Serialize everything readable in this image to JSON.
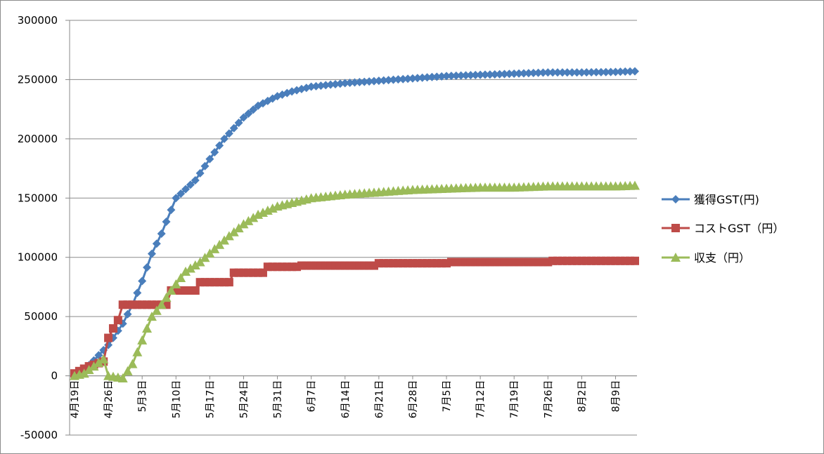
{
  "chart_data": {
    "type": "line",
    "title": "",
    "xlabel": "",
    "ylabel": "",
    "ylim": [
      -50000,
      300000
    ],
    "y_ticks": [
      "-50000",
      "0",
      "50000",
      "100000",
      "150000",
      "200000",
      "250000",
      "300000"
    ],
    "y_tick_values": [
      -50000,
      0,
      50000,
      100000,
      150000,
      200000,
      250000,
      300000
    ],
    "x_tick_labels": [
      "4月19日",
      "4月26日",
      "5月3日",
      "5月10日",
      "5月17日",
      "5月24日",
      "5月31日",
      "6月7日",
      "6月14日",
      "6月21日",
      "6月28日",
      "7月5日",
      "7月12日",
      "7月19日",
      "7月26日",
      "8月2日",
      "8月9日"
    ],
    "x_range": [
      "4月19日",
      "8月13日"
    ],
    "grid": "horizontal",
    "legend_position": "right",
    "series": [
      {
        "name": "獲得GST(円)",
        "color": "#4a7ebb",
        "marker": "diamond",
        "points": [
          [
            "4月19日",
            0
          ],
          [
            "4月21日",
            5000
          ],
          [
            "4月23日",
            13000
          ],
          [
            "4月26日",
            26000
          ],
          [
            "4月29日",
            44000
          ],
          [
            "5月1日",
            60000
          ],
          [
            "5月3日",
            80000
          ],
          [
            "5月5日",
            103000
          ],
          [
            "5月7日",
            120000
          ],
          [
            "5月10日",
            150000
          ],
          [
            "5月14日",
            165000
          ],
          [
            "5月17日",
            183000
          ],
          [
            "5月20日",
            200000
          ],
          [
            "5月24日",
            218000
          ],
          [
            "5月27日",
            228000
          ],
          [
            "5月31日",
            236000
          ],
          [
            "6月3日",
            240000
          ],
          [
            "6月7日",
            244000
          ],
          [
            "6月14日",
            247000
          ],
          [
            "6月21日",
            249000
          ],
          [
            "6月28日",
            251000
          ],
          [
            "7月5日",
            253000
          ],
          [
            "7月12日",
            254000
          ],
          [
            "7月19日",
            255000
          ],
          [
            "7月26日",
            256000
          ],
          [
            "8月2日",
            256000
          ],
          [
            "8月9日",
            256500
          ],
          [
            "8月13日",
            257000
          ]
        ]
      },
      {
        "name": "コストGST（円）",
        "color": "#be4b48",
        "marker": "square",
        "points": [
          [
            "4月19日",
            2000
          ],
          [
            "4月22日",
            8000
          ],
          [
            "4月25日",
            12000
          ],
          [
            "4月26日",
            32000
          ],
          [
            "4月27日",
            40000
          ],
          [
            "4月28日",
            47000
          ],
          [
            "4月29日",
            60000
          ],
          [
            "5月8日",
            60000
          ],
          [
            "5月9日",
            72000
          ],
          [
            "5月14日",
            72000
          ],
          [
            "5月15日",
            79000
          ],
          [
            "5月21日",
            79000
          ],
          [
            "5月22日",
            87000
          ],
          [
            "5月28日",
            87000
          ],
          [
            "5月29日",
            92000
          ],
          [
            "6月4日",
            92000
          ],
          [
            "6月5日",
            93000
          ],
          [
            "6月20日",
            93000
          ],
          [
            "6月21日",
            95000
          ],
          [
            "7月5日",
            95000
          ],
          [
            "7月6日",
            96000
          ],
          [
            "7月26日",
            96000
          ],
          [
            "7月27日",
            97000
          ],
          [
            "8月13日",
            97000
          ]
        ]
      },
      {
        "name": "収支（円）",
        "color": "#9bbb59",
        "marker": "triangle",
        "points": [
          [
            "4月19日",
            0
          ],
          [
            "4月21日",
            2000
          ],
          [
            "4月23日",
            8000
          ],
          [
            "4月25日",
            14000
          ],
          [
            "4月26日",
            0
          ],
          [
            "4月29日",
            -2000
          ],
          [
            "5月1日",
            10000
          ],
          [
            "5月3日",
            30000
          ],
          [
            "5月5日",
            50000
          ],
          [
            "5月7日",
            60000
          ],
          [
            "5月9日",
            72000
          ],
          [
            "5月12日",
            88000
          ],
          [
            "5月15日",
            96000
          ],
          [
            "5月18日",
            107000
          ],
          [
            "5月21日",
            118000
          ],
          [
            "5月24日",
            128000
          ],
          [
            "5月27日",
            136000
          ],
          [
            "5月31日",
            143000
          ],
          [
            "6月7日",
            150000
          ],
          [
            "6月14日",
            153000
          ],
          [
            "6月21日",
            155000
          ],
          [
            "6月28日",
            157000
          ],
          [
            "7月5日",
            158000
          ],
          [
            "7月12日",
            159000
          ],
          [
            "7月19日",
            159000
          ],
          [
            "7月26日",
            160000
          ],
          [
            "8月2日",
            160000
          ],
          [
            "8月9日",
            160000
          ],
          [
            "8月13日",
            160500
          ]
        ]
      }
    ]
  }
}
